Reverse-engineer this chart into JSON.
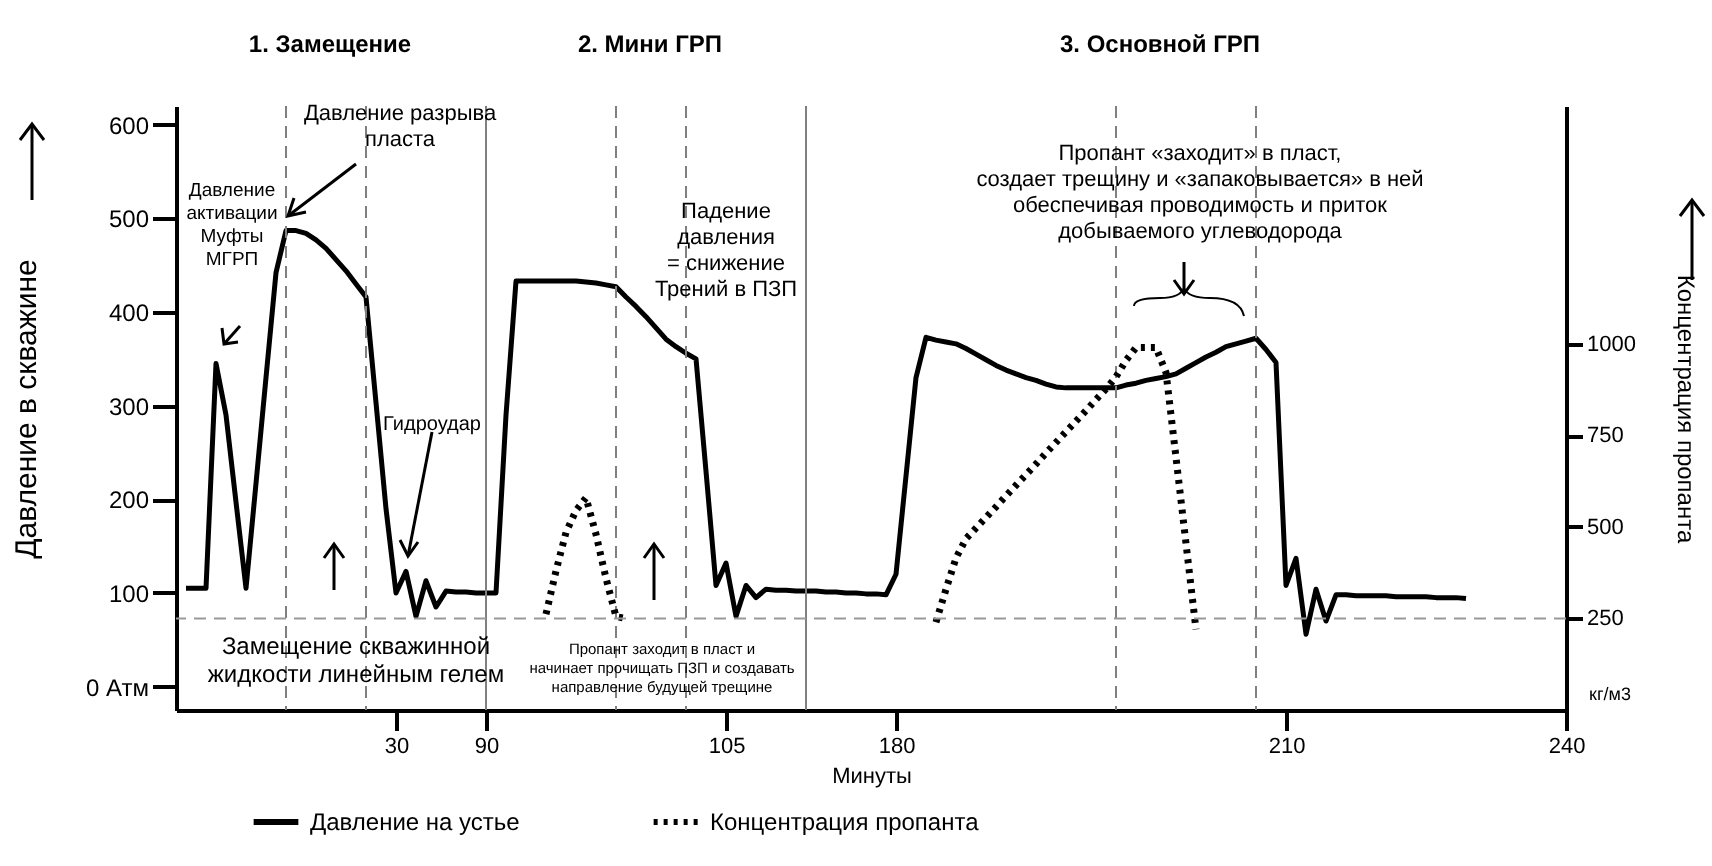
{
  "chart_data": {
    "type": "line",
    "xlabel": "Минуты",
    "ylabel": "Давление в скважине",
    "y2label": "Концентрация пропанта",
    "categories": [
      null,
      null,
      null,
      null,
      null,
      null,
      null,
      null,
      null,
      null,
      null,
      null,
      null,
      null,
      null,
      null,
      null,
      null,
      null,
      null,
      null,
      null,
      "30",
      null,
      null,
      null,
      null,
      null,
      null,
      null,
      null,
      "90",
      null,
      null,
      null,
      null,
      null,
      null,
      null,
      null,
      null,
      null,
      null,
      null,
      null,
      null,
      null,
      null,
      null,
      null,
      null,
      null,
      null,
      null,
      null,
      "105",
      null,
      null,
      null,
      null,
      null,
      null,
      null,
      null,
      null,
      null,
      null,
      null,
      null,
      null,
      null,
      null,
      "180",
      null,
      null,
      null,
      null,
      null,
      null,
      null,
      null,
      null,
      null,
      null,
      null,
      null,
      null,
      null,
      null,
      null,
      null,
      null,
      null,
      null,
      null,
      null,
      null,
      null,
      null,
      null,
      null,
      null,
      null,
      null,
      null,
      null,
      null,
      null,
      null,
      null,
      null,
      "210",
      null,
      null,
      null,
      null,
      null,
      null,
      null,
      null,
      null,
      null,
      null,
      null,
      null,
      null,
      null,
      null,
      null,
      null,
      null,
      null,
      null,
      null,
      null,
      null,
      null,
      null,
      null,
      "240"
    ],
    "ylim": [
      -25,
      620
    ],
    "yticks": [
      {
        "value": 0,
        "label": "0 Атм"
      },
      100,
      200,
      300,
      400,
      500,
      600
    ],
    "y2lim": [
      0,
      1650
    ],
    "y2ticks": [
      250,
      500,
      750,
      1000
    ],
    "series": [
      {
        "name": "Давление на устье",
        "color": "#000000",
        "line_style": "solid",
        "values": [
          null,
          105,
          105,
          105,
          345,
          290,
          197,
          105,
          217,
          330,
          442,
          487,
          487,
          484,
          477,
          468,
          456,
          444,
          430,
          416,
          303,
          190,
          100,
          123,
          75,
          113,
          85,
          102,
          101,
          101,
          100,
          100,
          100,
          290,
          433,
          433,
          433,
          433,
          433,
          433,
          433,
          432,
          431,
          429,
          427,
          416,
          406,
          395,
          383,
          371,
          363,
          356,
          350,
          230,
          108,
          132,
          75,
          108,
          95,
          104,
          103,
          103,
          102,
          102,
          102,
          101,
          101,
          100,
          100,
          99,
          99,
          98,
          120,
          225,
          330,
          373,
          370,
          368,
          366,
          361,
          355,
          349,
          343,
          338,
          334,
          330,
          327,
          323,
          320,
          319,
          319,
          319,
          319,
          319,
          319,
          322,
          324,
          327,
          329,
          331,
          334,
          340,
          346,
          352,
          357,
          363,
          366,
          369,
          372,
          360,
          346,
          108,
          137,
          56,
          104,
          70,
          98,
          98,
          97,
          97,
          97,
          97,
          96,
          96,
          96,
          96,
          95,
          95,
          95,
          94,
          null,
          null,
          null,
          null,
          null,
          null,
          null,
          null,
          null,
          null
        ]
      },
      {
        "name": "Концентрация пропанта",
        "color": "#000000",
        "line_style": "dotted",
        "axis": "y2",
        "values": [
          null,
          null,
          null,
          null,
          null,
          null,
          null,
          null,
          null,
          null,
          null,
          null,
          null,
          null,
          null,
          null,
          null,
          null,
          null,
          null,
          null,
          null,
          null,
          null,
          null,
          null,
          null,
          null,
          null,
          null,
          null,
          null,
          null,
          null,
          null,
          null,
          null,
          262,
          380,
          485,
          545,
          580,
          480,
          360,
          255,
          250,
          null,
          null,
          null,
          null,
          null,
          null,
          null,
          null,
          null,
          null,
          null,
          null,
          null,
          null,
          null,
          null,
          null,
          null,
          null,
          null,
          null,
          null,
          null,
          null,
          null,
          null,
          null,
          null,
          null,
          null,
          240,
          330,
          415,
          468,
          497,
          526,
          555,
          585,
          614,
          643,
          672,
          702,
          731,
          760,
          789,
          818,
          848,
          877,
          910,
          955,
          990,
          990,
          990,
          922,
          690,
          455,
          220,
          null,
          null,
          null,
          null,
          null,
          null,
          null,
          null,
          null,
          null,
          null,
          null,
          null,
          null,
          null,
          null,
          null,
          null,
          null,
          null,
          null,
          null,
          null,
          null,
          null,
          null,
          null,
          null,
          null,
          null,
          null,
          null,
          null,
          null,
          null,
          null,
          null
        ]
      }
    ],
    "ref_lines": [
      {
        "axis": "y2",
        "value": 250,
        "color": "#999999",
        "line_style": "dashed"
      }
    ],
    "annotations": [
      "1. Замещение",
      "2. Мини ГРП",
      "3. Основной ГРП",
      "Давление разрыва\nпласта",
      "Давление\nактивации\nМуфты\nМГРП",
      "Гидроудар",
      "Замещение скважинной\nжидкости линейным гелем",
      "Падение\nдавления\n= снижение\nТрений в ПЗП",
      "Пропант заходит в пласт и\nначинает прочищать ПЗП и создавать\nнаправление будущей трещине",
      "Пропант «заходит» в пласт,\nсоздает трещину и «запаковывается» в ней\nобеспечивая проводимость и приток\nдобываемого углеводорода",
      "кг/м3"
    ],
    "legend": "bottom"
  }
}
